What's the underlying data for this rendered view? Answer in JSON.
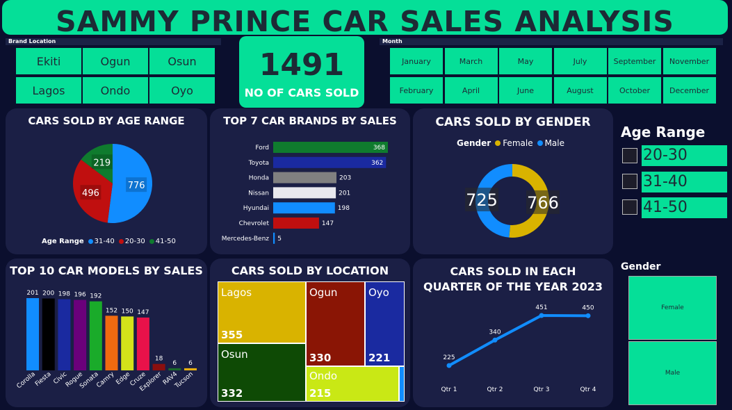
{
  "title": "SAMMY PRINCE CAR SALES ANALYSIS",
  "brand_location": {
    "label": "Brand Location",
    "items": [
      "Ekiti",
      "Ogun",
      "Osun",
      "Lagos",
      "Ondo",
      "Oyo"
    ]
  },
  "kpi": {
    "value": "1491",
    "label": "NO OF CARS SOLD"
  },
  "month": {
    "label": "Month",
    "items": [
      "January",
      "March",
      "May",
      "July",
      "September",
      "November",
      "February",
      "April",
      "June",
      "August",
      "October",
      "December"
    ]
  },
  "age_chart": {
    "title": "CARS SOLD BY AGE RANGE",
    "legend_title": "Age Range",
    "slices": [
      {
        "label": "31-40",
        "value": 776,
        "color": "#118dff"
      },
      {
        "label": "20-30",
        "value": 496,
        "color": "#c00f0f"
      },
      {
        "label": "41-50",
        "value": 219,
        "color": "#0f7b2e"
      }
    ]
  },
  "brands_chart": {
    "title": "TOP 7 CAR BRANDS BY SALES",
    "bars": [
      {
        "label": "Ford",
        "value": 368,
        "color": "#0f7b2e"
      },
      {
        "label": "Toyota",
        "value": 362,
        "color": "#1a2aa0"
      },
      {
        "label": "Honda",
        "value": 203,
        "color": "#808080"
      },
      {
        "label": "Nissan",
        "value": 201,
        "color": "#e8e8ee"
      },
      {
        "label": "Hyundai",
        "value": 198,
        "color": "#118dff"
      },
      {
        "label": "Chevrolet",
        "value": 147,
        "color": "#c00f0f"
      },
      {
        "label": "Mercedes-Benz",
        "value": 5,
        "color": "#118dff"
      }
    ]
  },
  "gender_chart": {
    "title": "CARS SOLD BY GENDER",
    "legend_title": "Gender",
    "slices": [
      {
        "label": "Female",
        "value": 766,
        "color": "#d9b300"
      },
      {
        "label": "Male",
        "value": 725,
        "color": "#118dff"
      }
    ]
  },
  "age_slicer": {
    "title": "Age Range",
    "items": [
      "20-30",
      "31-40",
      "41-50"
    ]
  },
  "models_chart": {
    "title": "TOP 10 CAR MODELS BY SALES",
    "bars": [
      {
        "label": "Corolla",
        "value": 201,
        "color": "#118dff"
      },
      {
        "label": "Fiesta",
        "value": 200,
        "color": "#000000"
      },
      {
        "label": "Civic",
        "value": 198,
        "color": "#1a2aa0"
      },
      {
        "label": "Rogue",
        "value": 196,
        "color": "#6b007b"
      },
      {
        "label": "Sonata",
        "value": 192,
        "color": "#1aab2a"
      },
      {
        "label": "Camry",
        "value": 152,
        "color": "#f06a10"
      },
      {
        "label": "Edge",
        "value": 150,
        "color": "#d4e21a"
      },
      {
        "label": "Cruze",
        "value": 147,
        "color": "#e8124a"
      },
      {
        "label": "Explorer",
        "value": 18,
        "color": "#8a0f0f"
      },
      {
        "label": "RAV4",
        "value": 6,
        "color": "#1a6a2a"
      },
      {
        "label": "Tucson",
        "value": 6,
        "color": "#e8b010"
      }
    ]
  },
  "location_chart": {
    "title": "CARS SOLD BY LOCATION",
    "cells": [
      {
        "label": "Lagos",
        "value": "355"
      },
      {
        "label": "Osun",
        "value": "332"
      },
      {
        "label": "Ogun",
        "value": "330"
      },
      {
        "label": "Oyo",
        "value": "221"
      },
      {
        "label": "Ondo",
        "value": "215"
      }
    ]
  },
  "quarter_chart": {
    "title_line1": "CARS SOLD IN EACH",
    "title_line2": "QUARTER OF THE YEAR 2023",
    "points": [
      {
        "label": "Qtr 1",
        "value": 225
      },
      {
        "label": "Qtr 2",
        "value": 340
      },
      {
        "label": "Qtr 3",
        "value": 451
      },
      {
        "label": "Qtr 4",
        "value": 450
      }
    ]
  },
  "gender_slicer": {
    "title": "Gender",
    "items": [
      "Female",
      "Male"
    ]
  },
  "chart_data": [
    {
      "type": "pie",
      "title": "CARS SOLD BY AGE RANGE",
      "categories": [
        "31-40",
        "20-30",
        "41-50"
      ],
      "values": [
        776,
        496,
        219
      ]
    },
    {
      "type": "bar",
      "title": "TOP 7 CAR BRANDS BY SALES",
      "categories": [
        "Ford",
        "Toyota",
        "Honda",
        "Nissan",
        "Hyundai",
        "Chevrolet",
        "Mercedes-Benz"
      ],
      "values": [
        368,
        362,
        203,
        201,
        198,
        147,
        5
      ]
    },
    {
      "type": "pie",
      "title": "CARS SOLD BY GENDER",
      "categories": [
        "Female",
        "Male"
      ],
      "values": [
        766,
        725
      ]
    },
    {
      "type": "bar",
      "title": "TOP 10 CAR MODELS BY SALES",
      "categories": [
        "Corolla",
        "Fiesta",
        "Civic",
        "Rogue",
        "Sonata",
        "Camry",
        "Edge",
        "Cruze",
        "Explorer",
        "RAV4",
        "Tucson"
      ],
      "values": [
        201,
        200,
        198,
        196,
        192,
        152,
        150,
        147,
        18,
        6,
        6
      ]
    },
    {
      "type": "heatmap",
      "title": "CARS SOLD BY LOCATION",
      "categories": [
        "Lagos",
        "Osun",
        "Ogun",
        "Oyo",
        "Ondo"
      ],
      "values": [
        355,
        332,
        330,
        221,
        215
      ]
    },
    {
      "type": "line",
      "title": "CARS SOLD IN EACH QUARTER OF THE YEAR 2023",
      "categories": [
        "Qtr 1",
        "Qtr 2",
        "Qtr 3",
        "Qtr 4"
      ],
      "values": [
        225,
        340,
        451,
        450
      ]
    }
  ]
}
